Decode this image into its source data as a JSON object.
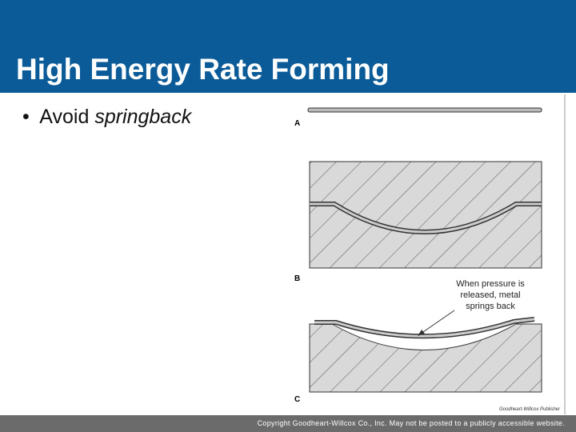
{
  "header": {
    "title": "High Energy Rate Forming"
  },
  "bullet": {
    "text": "Avoid",
    "emphasis": "springback"
  },
  "figure": {
    "labels": [
      "A",
      "B",
      "C"
    ],
    "annotation": [
      "When pressure is",
      "released, metal",
      "springs back"
    ],
    "credit": "Goodheart-Willcox Publisher"
  },
  "footer": {
    "text": "Copyright Goodheart-Willcox Co., Inc.  May not be posted to a publicly accessible website."
  }
}
